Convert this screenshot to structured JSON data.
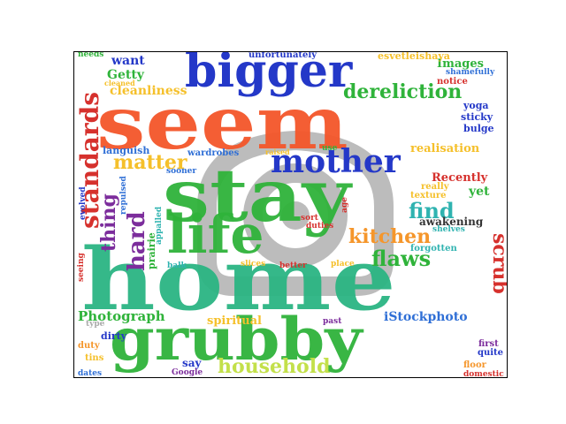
{
  "word_cloud": {
    "watermark_icon": "camera-watermark-icon",
    "words": [
      {
        "text": "home",
        "color": "#2bb583"
      },
      {
        "text": "stay",
        "color": "#2fb33a"
      },
      {
        "text": "seem",
        "color": "#f4562a"
      },
      {
        "text": "grubby",
        "color": "#2fb33a"
      },
      {
        "text": "life",
        "color": "#2fb33a"
      },
      {
        "text": "bigger",
        "color": "#2438c8"
      },
      {
        "text": "mother",
        "color": "#2438c8"
      },
      {
        "text": "standards",
        "color": "#d6312d"
      },
      {
        "text": "household",
        "color": "#c3e04a"
      },
      {
        "text": "dereliction",
        "color": "#2fb33a"
      },
      {
        "text": "kitchen",
        "color": "#f5962b"
      },
      {
        "text": "matter",
        "color": "#f5c02b"
      },
      {
        "text": "find",
        "color": "#2fb3b0"
      },
      {
        "text": "flaws",
        "color": "#2fb33a"
      },
      {
        "text": "hard",
        "color": "#7c2d9c"
      },
      {
        "text": "scrub",
        "color": "#d6312d"
      },
      {
        "text": "thing",
        "color": "#7c2d9c"
      },
      {
        "text": "Photograph",
        "color": "#2fb33a"
      },
      {
        "text": "cleanliness",
        "color": "#f5c02b"
      },
      {
        "text": "want",
        "color": "#2438c8"
      },
      {
        "text": "Getty",
        "color": "#2fb33a"
      },
      {
        "text": "iStockphoto",
        "color": "#2f6fd6"
      },
      {
        "text": "Images",
        "color": "#2fb33a"
      },
      {
        "text": "esvetleishaya",
        "color": "#f5c02b"
      },
      {
        "text": "unfortunately",
        "color": "#2438c8"
      },
      {
        "text": "realisation",
        "color": "#f5c02b"
      },
      {
        "text": "Recently",
        "color": "#d6312d"
      },
      {
        "text": "awakening",
        "color": "#333333"
      },
      {
        "text": "spiritual",
        "color": "#f5c02b"
      },
      {
        "text": "yet",
        "color": "#2fb33a"
      },
      {
        "text": "yoga",
        "color": "#2438c8"
      },
      {
        "text": "sticky",
        "color": "#2438c8"
      },
      {
        "text": "bulge",
        "color": "#2438c8"
      },
      {
        "text": "notice",
        "color": "#d6312d"
      },
      {
        "text": "shamefully",
        "color": "#2f6fd6"
      },
      {
        "text": "languish",
        "color": "#2f6fd6"
      },
      {
        "text": "wardrobes",
        "color": "#2f6fd6"
      },
      {
        "text": "sooner",
        "color": "#2f6fd6"
      },
      {
        "text": "needs",
        "color": "#2fb33a"
      },
      {
        "text": "cleaned",
        "color": "#f5c02b"
      },
      {
        "text": "forgotten",
        "color": "#2fb3b0"
      },
      {
        "text": "shelves",
        "color": "#2fb3b0"
      },
      {
        "text": "dirty",
        "color": "#2438c8"
      },
      {
        "text": "duty",
        "color": "#f5962b"
      },
      {
        "text": "tins",
        "color": "#f5c02b"
      },
      {
        "text": "dates",
        "color": "#2f6fd6"
      },
      {
        "text": "say",
        "color": "#2438c8"
      },
      {
        "text": "Google",
        "color": "#7c2d9c"
      },
      {
        "text": "floor",
        "color": "#f5962b"
      },
      {
        "text": "domestic",
        "color": "#d6312d"
      },
      {
        "text": "first",
        "color": "#7c2d9c"
      },
      {
        "text": "quite",
        "color": "#2438c8"
      },
      {
        "text": "past",
        "color": "#7c2d9c"
      },
      {
        "text": "type",
        "color": "#aaaaaa"
      },
      {
        "text": "balk",
        "color": "#2fb3b0"
      },
      {
        "text": "slices",
        "color": "#f5c02b"
      },
      {
        "text": "better",
        "color": "#d6312d"
      },
      {
        "text": "place",
        "color": "#f5c02b"
      },
      {
        "text": "sort",
        "color": "#d6312d"
      },
      {
        "text": "duties",
        "color": "#d6312d"
      },
      {
        "text": "use",
        "color": "#2fb33a"
      },
      {
        "text": "raised",
        "color": "#f5c02b"
      },
      {
        "text": "age",
        "color": "#d6312d"
      },
      {
        "text": "really",
        "color": "#f5c02b"
      },
      {
        "text": "texture",
        "color": "#f5c02b"
      },
      {
        "text": "evolved",
        "color": "#2438c8"
      },
      {
        "text": "seeing",
        "color": "#d6312d"
      },
      {
        "text": "repulsed",
        "color": "#2f6fd6"
      },
      {
        "text": "prairie",
        "color": "#2fb33a"
      },
      {
        "text": "appalled",
        "color": "#2fb3b0"
      }
    ]
  }
}
